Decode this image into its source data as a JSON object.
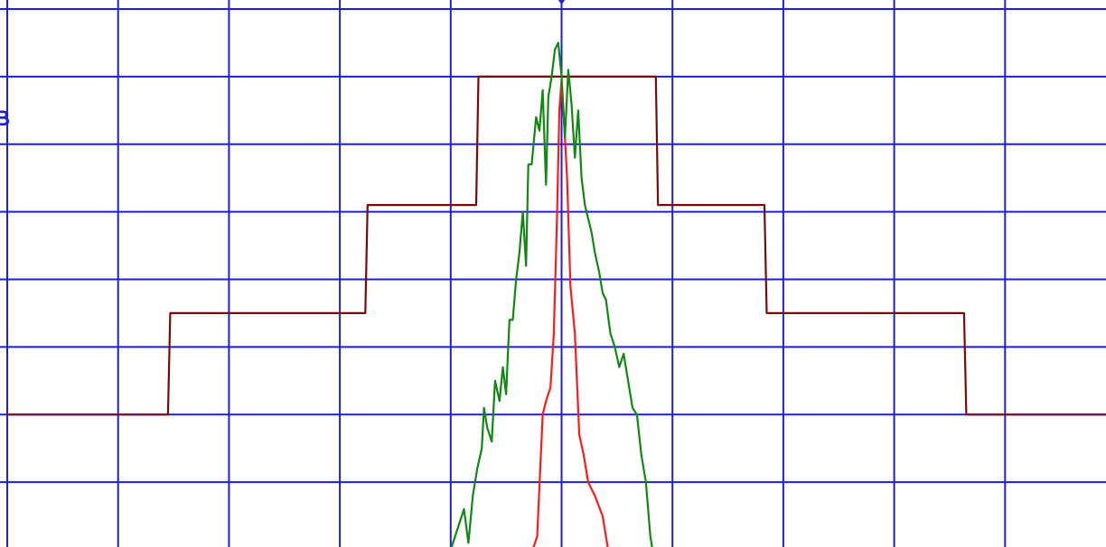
{
  "chart_data": {
    "type": "line",
    "title": "",
    "xlabel": "",
    "ylabel": "",
    "grid": true,
    "xlim": [
      0,
      10
    ],
    "ylim": [
      -8,
      0
    ],
    "edge_text": {
      "left_partial_label": "B",
      "left_partial_mark": "-"
    },
    "colors": {
      "grid": "#1f1fd6",
      "mask": "#7a0a0a",
      "trace_narrow": "#ff1a1a",
      "trace_wide": "#118811",
      "marker": "#1f1fd6"
    },
    "marker": {
      "shape": "diamond",
      "x": 5.0,
      "y": 0.3
    },
    "series": [
      {
        "id": "mask",
        "color": "#7a0a0a",
        "x": [
          0,
          1.45,
          1.47,
          3.23,
          3.25,
          4.23,
          4.25,
          5.85,
          5.87,
          6.83,
          6.85,
          8.63,
          8.65,
          10
        ],
        "y": [
          -6.0,
          -6.0,
          -4.5,
          -4.5,
          -2.9,
          -2.9,
          -1.0,
          -1.0,
          -2.9,
          -2.9,
          -4.5,
          -4.5,
          -6.0,
          -6.0
        ]
      },
      {
        "id": "trace-narrow",
        "color": "#ff1a1a",
        "x": [
          4.7,
          4.78,
          4.83,
          4.86,
          4.9,
          4.93,
          4.96,
          4.98,
          5.0,
          5.02,
          5.05,
          5.08,
          5.12,
          5.16,
          5.2,
          5.24,
          5.3,
          5.37,
          5.42
        ],
        "y": [
          -8.2,
          -7.8,
          -6.0,
          -5.8,
          -5.6,
          -4.8,
          -3.0,
          -1.5,
          -1.05,
          -1.6,
          -2.5,
          -4.1,
          -4.8,
          -6.3,
          -6.6,
          -7.0,
          -7.2,
          -7.5,
          -8.0
        ]
      },
      {
        "id": "trace-wide",
        "color": "#118811",
        "x": [
          4.0,
          4.04,
          4.08,
          4.12,
          4.16,
          4.2,
          4.24,
          4.28,
          4.3,
          4.33,
          4.37,
          4.4,
          4.44,
          4.47,
          4.5,
          4.53,
          4.56,
          4.59,
          4.62,
          4.65,
          4.68,
          4.7,
          4.73,
          4.77,
          4.8,
          4.83,
          4.86,
          4.88,
          4.91,
          4.94,
          4.97,
          5.0,
          5.03,
          5.06,
          5.09,
          5.12,
          5.15,
          5.18,
          5.21,
          5.24,
          5.27,
          5.3,
          5.34,
          5.37,
          5.4,
          5.44,
          5.48,
          5.52,
          5.56,
          5.6,
          5.64,
          5.68,
          5.72,
          5.76,
          5.8,
          5.84
        ],
        "y": [
          -8.0,
          -7.8,
          -7.6,
          -7.4,
          -7.9,
          -7.2,
          -6.8,
          -6.5,
          -5.9,
          -6.2,
          -6.4,
          -5.5,
          -5.8,
          -5.3,
          -5.7,
          -4.6,
          -4.6,
          -4.0,
          -3.6,
          -3.0,
          -3.8,
          -2.3,
          -2.3,
          -1.6,
          -1.8,
          -1.2,
          -2.6,
          -1.3,
          -1.0,
          -0.6,
          -0.5,
          -1.0,
          -1.9,
          -0.9,
          -1.4,
          -2.2,
          -1.5,
          -2.5,
          -2.9,
          -3.1,
          -3.3,
          -3.6,
          -3.9,
          -4.2,
          -4.3,
          -4.8,
          -5.0,
          -5.3,
          -5.1,
          -5.5,
          -5.9,
          -6.0,
          -6.6,
          -7.0,
          -7.8,
          -8.2
        ]
      }
    ]
  }
}
